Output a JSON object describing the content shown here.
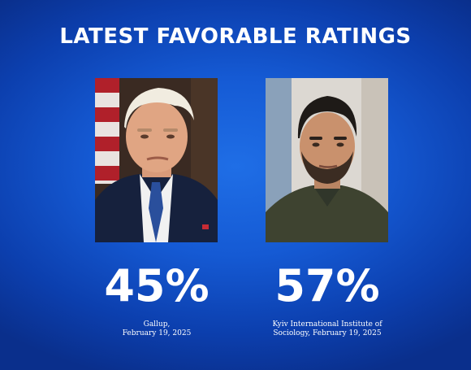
{
  "headline": "LATEST FAVORABLE RATINGS",
  "left": {
    "photo_icon": "portrait-photo-icon",
    "percent": "45%",
    "source_line1": "Gallup,",
    "source_line2": "February 19, 2025"
  },
  "right": {
    "photo_icon": "portrait-photo-icon",
    "percent": "57%",
    "source_line1": "Kyiv International Institute of",
    "source_line2": "Sociology, February 19, 2025"
  },
  "colors": {
    "background": "#155ad4",
    "text": "#ffffff"
  }
}
